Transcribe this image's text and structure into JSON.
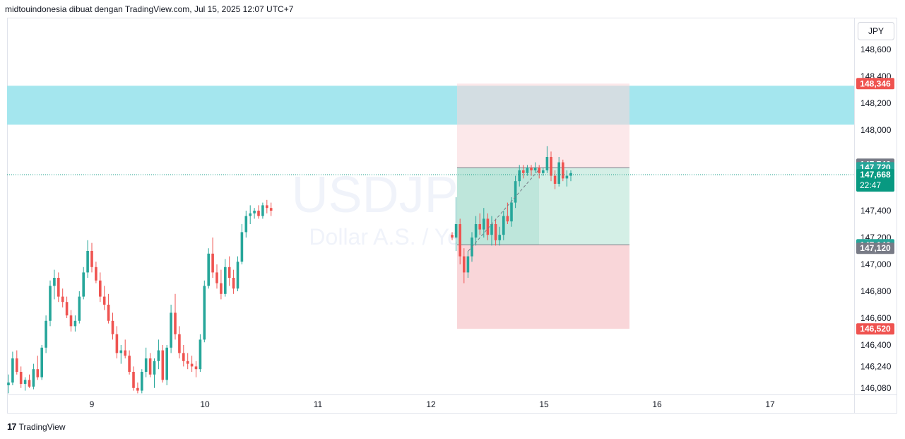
{
  "header": {
    "text": "midtouindonesia dibuat dengan TradingView.com, Jul 15, 2025 12:07 UTC+7"
  },
  "currency_button": "JPY",
  "footer": {
    "logo_icon": "tradingview-logo-icon",
    "text": "TradingView"
  },
  "watermark": {
    "symbol": "USDJPY, 30",
    "description": "Dollar A.S. / Yen Jepang"
  },
  "colors": {
    "up": "#26a69a",
    "down": "#ef5350",
    "zone": "#a4e6ee",
    "profit": "#d4efe6",
    "loss": "#f9d6d9",
    "neutral_label": "#787b86"
  },
  "chart_data": {
    "type": "candlestick",
    "symbol": "USDJPY",
    "timeframe": "30",
    "ylim": [
      146.0,
      148.75
    ],
    "yticks": [
      {
        "value": 148.6,
        "label": "148,600"
      },
      {
        "value": 148.4,
        "label": "148,400"
      },
      {
        "value": 148.2,
        "label": "148,200"
      },
      {
        "value": 148.0,
        "label": "148,000"
      },
      {
        "value": 147.4,
        "label": "147,400"
      },
      {
        "value": 147.2,
        "label": "147,200"
      },
      {
        "value": 147.0,
        "label": "147,000"
      },
      {
        "value": 146.8,
        "label": "146,800"
      },
      {
        "value": 146.6,
        "label": "146,600"
      },
      {
        "value": 146.4,
        "label": "146,400"
      },
      {
        "value": 146.24,
        "label": "146,240"
      },
      {
        "value": 146.08,
        "label": "146,080"
      }
    ],
    "xticks": [
      {
        "day": 9,
        "label": "9"
      },
      {
        "day": 10,
        "label": "10"
      },
      {
        "day": 11,
        "label": "11"
      },
      {
        "day": 12,
        "label": "12"
      },
      {
        "day": 15,
        "label": "15"
      },
      {
        "day": 16,
        "label": "16"
      },
      {
        "day": 17,
        "label": "17"
      }
    ],
    "price_labels": [
      {
        "value": 148.346,
        "label": "148,346",
        "color": "#ef5350"
      },
      {
        "value": 147.746,
        "label": "147,746",
        "color": "#787b86"
      },
      {
        "value": 147.72,
        "label": "147,720",
        "color": "#26a69a"
      },
      {
        "value": 147.668,
        "label": "147,668",
        "sublabel": "22:47",
        "color": "#089981"
      },
      {
        "value": 147.146,
        "label": "147,146",
        "color": "#26a69a"
      },
      {
        "value": 147.12,
        "label": "147,120",
        "color": "#787b86"
      },
      {
        "value": 146.52,
        "label": "146,520",
        "color": "#ef5350"
      }
    ],
    "resistance_zone": {
      "from": 148.04,
      "to": 148.33
    },
    "position": {
      "entry_top": 147.72,
      "entry_bottom": 147.146,
      "stop_top": 148.346,
      "stop_bottom": 146.52
    },
    "current_price": 147.668,
    "series": [
      {
        "o": 146.1,
        "h": 146.18,
        "l": 146.04,
        "c": 146.12
      },
      {
        "o": 146.12,
        "h": 146.35,
        "l": 146.1,
        "c": 146.3
      },
      {
        "o": 146.3,
        "h": 146.36,
        "l": 146.18,
        "c": 146.2
      },
      {
        "o": 146.2,
        "h": 146.24,
        "l": 146.08,
        "c": 146.11
      },
      {
        "o": 146.11,
        "h": 146.16,
        "l": 146.06,
        "c": 146.14
      },
      {
        "o": 146.14,
        "h": 146.18,
        "l": 146.08,
        "c": 146.09
      },
      {
        "o": 146.09,
        "h": 146.26,
        "l": 146.07,
        "c": 146.22
      },
      {
        "o": 146.22,
        "h": 146.32,
        "l": 146.14,
        "c": 146.16
      },
      {
        "o": 146.16,
        "h": 146.4,
        "l": 146.14,
        "c": 146.38
      },
      {
        "o": 146.38,
        "h": 146.62,
        "l": 146.34,
        "c": 146.58
      },
      {
        "o": 146.58,
        "h": 146.88,
        "l": 146.54,
        "c": 146.84
      },
      {
        "o": 146.84,
        "h": 146.96,
        "l": 146.74,
        "c": 146.9
      },
      {
        "o": 146.9,
        "h": 146.94,
        "l": 146.72,
        "c": 146.76
      },
      {
        "o": 146.76,
        "h": 146.82,
        "l": 146.68,
        "c": 146.72
      },
      {
        "o": 146.72,
        "h": 146.76,
        "l": 146.6,
        "c": 146.62
      },
      {
        "o": 146.62,
        "h": 146.66,
        "l": 146.5,
        "c": 146.54
      },
      {
        "o": 146.54,
        "h": 146.62,
        "l": 146.5,
        "c": 146.58
      },
      {
        "o": 146.58,
        "h": 146.8,
        "l": 146.56,
        "c": 146.76
      },
      {
        "o": 146.76,
        "h": 146.98,
        "l": 146.74,
        "c": 146.94
      },
      {
        "o": 146.94,
        "h": 147.18,
        "l": 146.9,
        "c": 147.1
      },
      {
        "o": 147.1,
        "h": 147.16,
        "l": 146.94,
        "c": 146.98
      },
      {
        "o": 146.98,
        "h": 147.02,
        "l": 146.86,
        "c": 146.88
      },
      {
        "o": 146.88,
        "h": 146.94,
        "l": 146.72,
        "c": 146.76
      },
      {
        "o": 146.76,
        "h": 146.84,
        "l": 146.66,
        "c": 146.7
      },
      {
        "o": 146.7,
        "h": 146.78,
        "l": 146.56,
        "c": 146.58
      },
      {
        "o": 146.58,
        "h": 146.64,
        "l": 146.44,
        "c": 146.48
      },
      {
        "o": 146.48,
        "h": 146.54,
        "l": 146.3,
        "c": 146.34
      },
      {
        "o": 146.34,
        "h": 146.4,
        "l": 146.26,
        "c": 146.36
      },
      {
        "o": 146.36,
        "h": 146.44,
        "l": 146.3,
        "c": 146.32
      },
      {
        "o": 146.32,
        "h": 146.36,
        "l": 146.18,
        "c": 146.2
      },
      {
        "o": 146.2,
        "h": 146.24,
        "l": 146.06,
        "c": 146.08
      },
      {
        "o": 146.08,
        "h": 146.12,
        "l": 146.04,
        "c": 146.06
      },
      {
        "o": 146.06,
        "h": 146.22,
        "l": 146.04,
        "c": 146.2
      },
      {
        "o": 146.2,
        "h": 146.38,
        "l": 146.16,
        "c": 146.3
      },
      {
        "o": 146.3,
        "h": 146.34,
        "l": 146.16,
        "c": 146.18
      },
      {
        "o": 146.18,
        "h": 146.3,
        "l": 146.08,
        "c": 146.28
      },
      {
        "o": 146.28,
        "h": 146.44,
        "l": 146.22,
        "c": 146.36
      },
      {
        "o": 146.36,
        "h": 146.4,
        "l": 146.12,
        "c": 146.14
      },
      {
        "o": 146.14,
        "h": 146.4,
        "l": 146.1,
        "c": 146.38
      },
      {
        "o": 146.38,
        "h": 146.7,
        "l": 146.34,
        "c": 146.64
      },
      {
        "o": 146.64,
        "h": 146.78,
        "l": 146.44,
        "c": 146.48
      },
      {
        "o": 146.48,
        "h": 146.54,
        "l": 146.3,
        "c": 146.34
      },
      {
        "o": 146.34,
        "h": 146.4,
        "l": 146.24,
        "c": 146.28
      },
      {
        "o": 146.28,
        "h": 146.34,
        "l": 146.22,
        "c": 146.26
      },
      {
        "o": 146.26,
        "h": 146.32,
        "l": 146.2,
        "c": 146.24
      },
      {
        "o": 146.24,
        "h": 146.28,
        "l": 146.16,
        "c": 146.22
      },
      {
        "o": 146.22,
        "h": 146.48,
        "l": 146.2,
        "c": 146.44
      },
      {
        "o": 146.44,
        "h": 146.88,
        "l": 146.42,
        "c": 146.84
      },
      {
        "o": 146.84,
        "h": 147.12,
        "l": 146.82,
        "c": 147.08
      },
      {
        "o": 147.08,
        "h": 147.2,
        "l": 146.9,
        "c": 146.94
      },
      {
        "o": 146.94,
        "h": 147.0,
        "l": 146.82,
        "c": 146.86
      },
      {
        "o": 146.86,
        "h": 146.96,
        "l": 146.74,
        "c": 146.78
      },
      {
        "o": 146.78,
        "h": 147.04,
        "l": 146.76,
        "c": 146.98
      },
      {
        "o": 146.98,
        "h": 147.06,
        "l": 146.84,
        "c": 146.9
      },
      {
        "o": 146.9,
        "h": 146.96,
        "l": 146.78,
        "c": 146.82
      },
      {
        "o": 146.82,
        "h": 147.06,
        "l": 146.8,
        "c": 147.02
      },
      {
        "o": 147.02,
        "h": 147.3,
        "l": 147.0,
        "c": 147.24
      },
      {
        "o": 147.24,
        "h": 147.4,
        "l": 147.2,
        "c": 147.36
      },
      {
        "o": 147.36,
        "h": 147.44,
        "l": 147.3,
        "c": 147.38
      },
      {
        "o": 147.38,
        "h": 147.42,
        "l": 147.34,
        "c": 147.4
      },
      {
        "o": 147.4,
        "h": 147.44,
        "l": 147.34,
        "c": 147.36
      },
      {
        "o": 147.36,
        "h": 147.46,
        "l": 147.34,
        "c": 147.44
      },
      {
        "o": 147.44,
        "h": 147.48,
        "l": 147.38,
        "c": 147.42
      },
      {
        "o": 147.42,
        "h": 147.46,
        "l": 147.36,
        "c": 147.4
      },
      {
        "o": 147.22,
        "h": 147.24,
        "l": 147.18,
        "c": 147.2
      },
      {
        "o": 147.2,
        "h": 147.5,
        "l": 147.1,
        "c": 147.3
      },
      {
        "o": 147.3,
        "h": 147.34,
        "l": 147.0,
        "c": 147.06
      },
      {
        "o": 147.06,
        "h": 147.12,
        "l": 146.86,
        "c": 146.94
      },
      {
        "o": 146.94,
        "h": 147.1,
        "l": 146.9,
        "c": 147.06
      },
      {
        "o": 147.06,
        "h": 147.24,
        "l": 147.02,
        "c": 147.2
      },
      {
        "o": 147.2,
        "h": 147.36,
        "l": 147.14,
        "c": 147.3
      },
      {
        "o": 147.3,
        "h": 147.38,
        "l": 147.22,
        "c": 147.26
      },
      {
        "o": 147.26,
        "h": 147.42,
        "l": 147.2,
        "c": 147.34
      },
      {
        "o": 147.34,
        "h": 147.38,
        "l": 147.18,
        "c": 147.22
      },
      {
        "o": 147.22,
        "h": 147.36,
        "l": 147.14,
        "c": 147.3
      },
      {
        "o": 147.3,
        "h": 147.34,
        "l": 147.14,
        "c": 147.18
      },
      {
        "o": 147.18,
        "h": 147.28,
        "l": 147.14,
        "c": 147.22
      },
      {
        "o": 147.22,
        "h": 147.4,
        "l": 147.18,
        "c": 147.36
      },
      {
        "o": 147.36,
        "h": 147.46,
        "l": 147.3,
        "c": 147.32
      },
      {
        "o": 147.32,
        "h": 147.5,
        "l": 147.28,
        "c": 147.46
      },
      {
        "o": 147.46,
        "h": 147.66,
        "l": 147.42,
        "c": 147.62
      },
      {
        "o": 147.62,
        "h": 147.74,
        "l": 147.58,
        "c": 147.7
      },
      {
        "o": 147.7,
        "h": 147.74,
        "l": 147.64,
        "c": 147.68
      },
      {
        "o": 147.68,
        "h": 147.74,
        "l": 147.66,
        "c": 147.72
      },
      {
        "o": 147.72,
        "h": 147.74,
        "l": 147.66,
        "c": 147.7
      },
      {
        "o": 147.7,
        "h": 147.76,
        "l": 147.68,
        "c": 147.72
      },
      {
        "o": 147.72,
        "h": 147.74,
        "l": 147.64,
        "c": 147.68
      },
      {
        "o": 147.68,
        "h": 147.72,
        "l": 147.66,
        "c": 147.7
      },
      {
        "o": 147.7,
        "h": 147.88,
        "l": 147.68,
        "c": 147.8
      },
      {
        "o": 147.8,
        "h": 147.84,
        "l": 147.62,
        "c": 147.66
      },
      {
        "o": 147.66,
        "h": 147.7,
        "l": 147.56,
        "c": 147.6
      },
      {
        "o": 147.6,
        "h": 147.8,
        "l": 147.58,
        "c": 147.76
      },
      {
        "o": 147.76,
        "h": 147.78,
        "l": 147.62,
        "c": 147.64
      },
      {
        "o": 147.64,
        "h": 147.7,
        "l": 147.58,
        "c": 147.66
      },
      {
        "o": 147.66,
        "h": 147.7,
        "l": 147.62,
        "c": 147.68
      }
    ]
  }
}
